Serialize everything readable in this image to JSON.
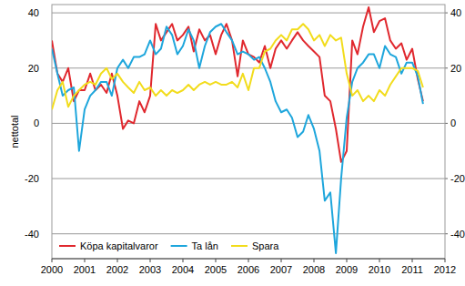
{
  "chart_data": {
    "type": "line",
    "y_label": "nettotal",
    "x": [
      2000,
      2000.17,
      2000.33,
      2000.5,
      2000.67,
      2000.83,
      2001,
      2001.17,
      2001.33,
      2001.5,
      2001.67,
      2001.83,
      2002,
      2002.17,
      2002.33,
      2002.5,
      2002.67,
      2002.83,
      2003,
      2003.17,
      2003.33,
      2003.5,
      2003.67,
      2003.83,
      2004,
      2004.17,
      2004.33,
      2004.5,
      2004.67,
      2004.83,
      2005,
      2005.17,
      2005.33,
      2005.5,
      2005.67,
      2005.83,
      2006,
      2006.17,
      2006.33,
      2006.5,
      2006.67,
      2006.83,
      2007,
      2007.17,
      2007.33,
      2007.5,
      2007.67,
      2007.83,
      2008,
      2008.17,
      2008.33,
      2008.5,
      2008.67,
      2008.83,
      2009,
      2009.17,
      2009.33,
      2009.5,
      2009.67,
      2009.83,
      2010,
      2010.17,
      2010.33,
      2010.5,
      2010.67,
      2010.83,
      2011,
      2011.17,
      2011.33
    ],
    "series": [
      {
        "name": "Köpa kapitalvaror",
        "color": "#e0282e",
        "values": [
          30,
          18,
          15,
          20,
          8,
          12,
          12,
          18,
          12,
          14,
          11,
          18,
          10,
          -2,
          1,
          0,
          8,
          4,
          10,
          36,
          30,
          33,
          36,
          30,
          32,
          35,
          26,
          34,
          30,
          32,
          25,
          32,
          36,
          30,
          17,
          30,
          25,
          24,
          22,
          28,
          20,
          27,
          30,
          27,
          30,
          33,
          30,
          28,
          26,
          24,
          10,
          8,
          -2,
          -14,
          -10,
          30,
          25,
          35,
          42,
          33,
          37,
          38,
          30,
          27,
          29,
          23,
          27,
          16,
          8
        ]
      },
      {
        "name": "Ta lån",
        "color": "#1ea6dc",
        "values": [
          27,
          18,
          10,
          12,
          13,
          -10,
          5,
          10,
          12,
          15,
          15,
          10,
          20,
          23,
          20,
          24,
          24,
          25,
          30,
          25,
          27,
          35,
          32,
          25,
          28,
          34,
          30,
          20,
          28,
          33,
          35,
          36,
          33,
          30,
          25,
          26,
          25,
          23,
          24,
          20,
          15,
          8,
          4,
          5,
          2,
          -5,
          -3,
          3,
          -2,
          -10,
          -28,
          -25,
          -47,
          -20,
          2,
          15,
          20,
          22,
          25,
          25,
          20,
          28,
          25,
          24,
          18,
          22,
          22,
          17,
          7
        ]
      },
      {
        "name": "Spara",
        "color": "#f2dc1c",
        "values": [
          5,
          12,
          15,
          6,
          10,
          12,
          14,
          15,
          14,
          18,
          20,
          16,
          18,
          15,
          13,
          11,
          15,
          12,
          13,
          10,
          12,
          10,
          12,
          11,
          12,
          14,
          12,
          14,
          15,
          14,
          15,
          14,
          14,
          15,
          13,
          18,
          12,
          20,
          20,
          26,
          27,
          30,
          32,
          30,
          34,
          34,
          36,
          34,
          30,
          32,
          28,
          32,
          30,
          31,
          18,
          10,
          12,
          8,
          10,
          8,
          12,
          10,
          14,
          17,
          20,
          20,
          20,
          19,
          13
        ]
      }
    ],
    "xlim": [
      2000,
      2012
    ],
    "xticks": [
      2000,
      2001,
      2002,
      2003,
      2004,
      2005,
      2006,
      2007,
      2008,
      2009,
      2010,
      2011,
      2012
    ],
    "ylim": [
      -49,
      43
    ],
    "yticks": [
      -40,
      -20,
      0,
      20,
      40
    ],
    "y2lim": [
      -49,
      43
    ],
    "y2ticks": [
      -40,
      -20,
      0,
      20,
      40
    ],
    "grid": true,
    "legend": "lower left"
  }
}
